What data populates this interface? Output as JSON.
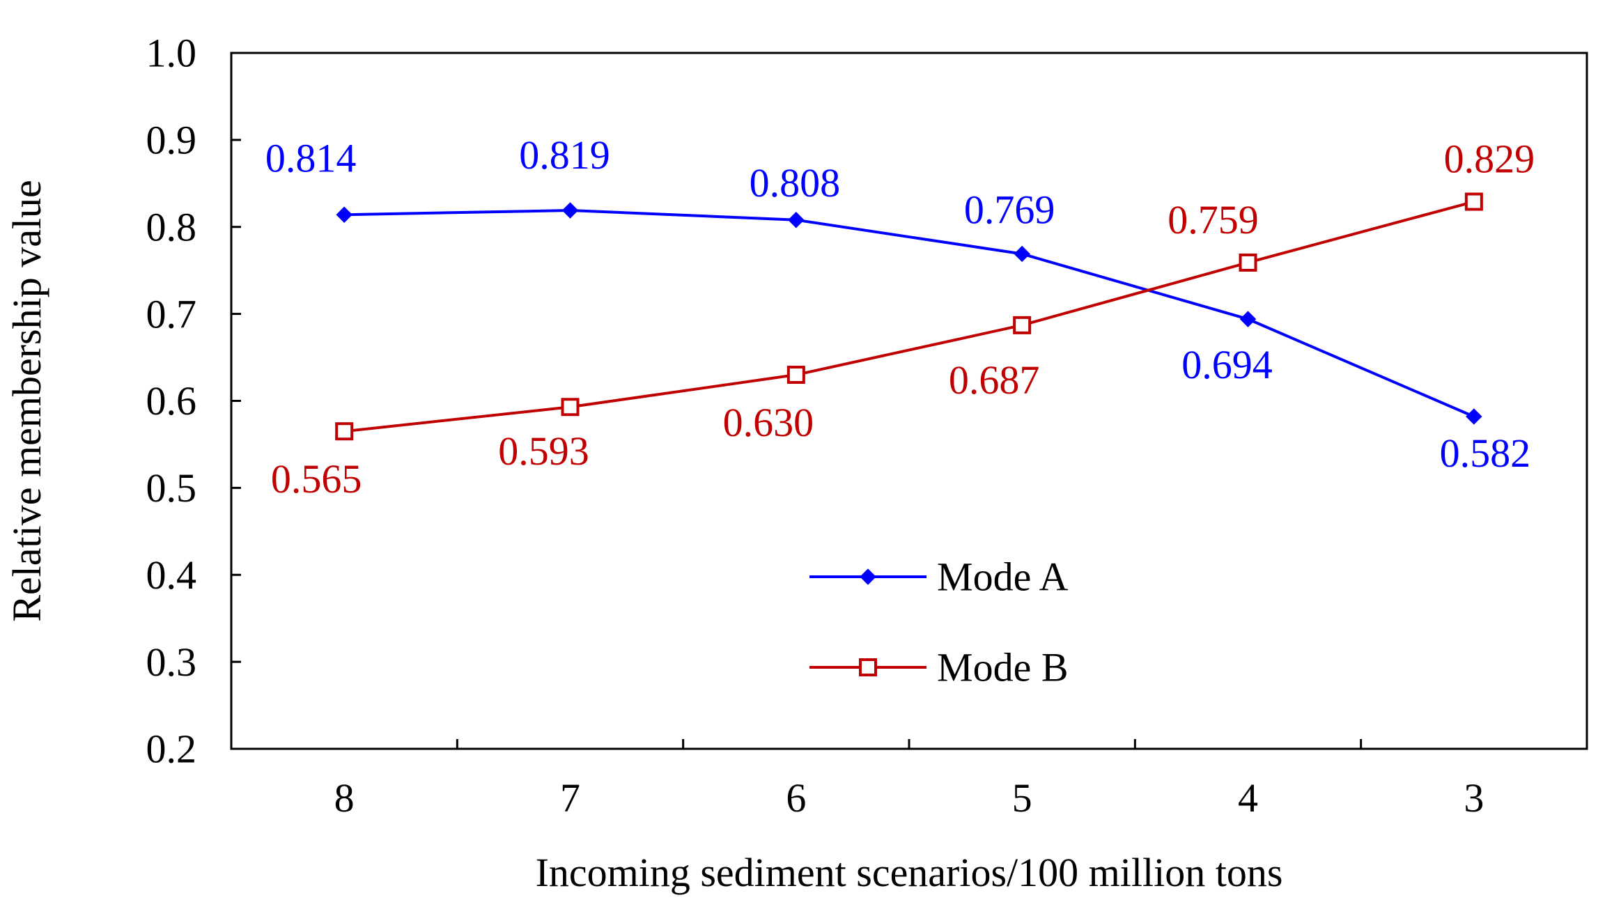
{
  "chart_data": {
    "type": "line",
    "title": "",
    "xlabel": "Incoming sediment scenarios/100 million tons",
    "ylabel": "Relative membership value",
    "categories": [
      "8",
      "7",
      "6",
      "5",
      "4",
      "3"
    ],
    "ylim": [
      0.2,
      1.0
    ],
    "yticks": [
      "0.2",
      "0.3",
      "0.4",
      "0.5",
      "0.6",
      "0.7",
      "0.8",
      "0.9",
      "1.0"
    ],
    "grid": false,
    "legend_position": "bottom-center",
    "series": [
      {
        "name": "Mode A",
        "marker": "filled-diamond",
        "color": "#0000ff",
        "values": [
          0.814,
          0.819,
          0.808,
          0.769,
          0.694,
          0.582
        ],
        "labels": [
          "0.814",
          "0.819",
          "0.808",
          "0.769",
          "0.694",
          "0.582"
        ]
      },
      {
        "name": "Mode B",
        "marker": "open-square",
        "color": "#c00000",
        "values": [
          0.565,
          0.593,
          0.63,
          0.687,
          0.759,
          0.829
        ],
        "labels": [
          "0.565",
          "0.593",
          "0.630",
          "0.687",
          "0.759",
          "0.829"
        ]
      }
    ]
  }
}
